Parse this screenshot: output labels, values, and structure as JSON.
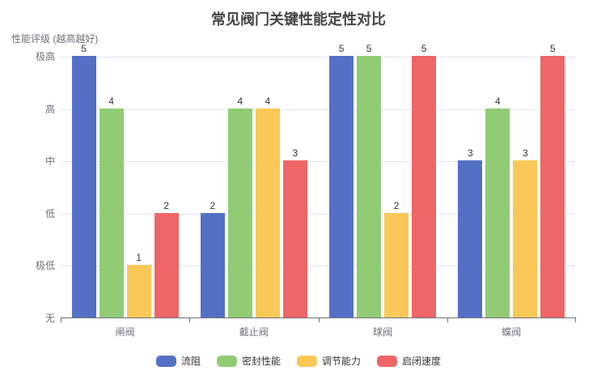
{
  "chart_data": {
    "type": "bar",
    "title": "常见阀门关键性能定性对比",
    "ylabel": "性能评级 (越高越好)",
    "xlabel": "",
    "categories": [
      "闸阀",
      "截止阀",
      "球阀",
      "蝶阀"
    ],
    "series": [
      {
        "name": "流阻",
        "color": "#5470c6",
        "values": [
          5,
          2,
          5,
          3
        ]
      },
      {
        "name": "密封性能",
        "color": "#91cc75",
        "values": [
          4,
          4,
          5,
          4
        ]
      },
      {
        "name": "调节能力",
        "color": "#fac858",
        "values": [
          1,
          4,
          2,
          3
        ]
      },
      {
        "name": "启闭速度",
        "color": "#ee6666",
        "values": [
          2,
          3,
          5,
          5
        ]
      }
    ],
    "ylim": [
      0,
      5
    ],
    "ytick_values": [
      0,
      1,
      2,
      3,
      4,
      5
    ],
    "ytick_labels": [
      "无",
      "极低",
      "低",
      "中",
      "高",
      "极高"
    ],
    "grid": true,
    "legend_position": "bottom",
    "value_labels_shown": true,
    "gridline_color": "#E0E6F1",
    "axis_line_color": "#6E7079",
    "axis_text_color": "#6E7079",
    "value_label_color": "#333333",
    "title_color": "#464646"
  }
}
